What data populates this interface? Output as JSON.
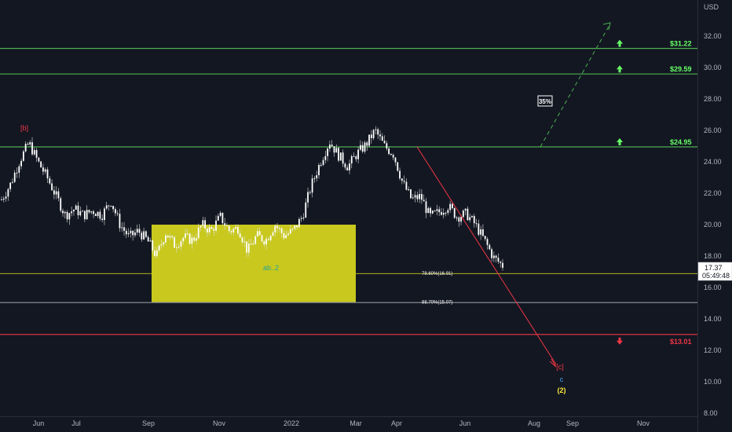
{
  "chart_data": {
    "type": "candlestick",
    "currency": "USD",
    "y_ticks": [
      "32.00",
      "30.00",
      "28.00",
      "26.00",
      "24.00",
      "22.00",
      "20.00",
      "18.00",
      "16.00",
      "14.00",
      "12.00",
      "10.00",
      "8.00"
    ],
    "ylim": [
      8,
      33.2
    ],
    "x_ticks": [
      "Jun",
      "Jul",
      "Sep",
      "Nov",
      "2022",
      "Mar",
      "Apr",
      "Jun",
      "Aug",
      "Sep",
      "Nov"
    ],
    "last_price": "17.37",
    "countdown": "05:49:48",
    "resistance_levels": [
      {
        "price": 31.22,
        "label": "$31.22",
        "color": "#4caf50"
      },
      {
        "price": 29.59,
        "label": "$29.59",
        "color": "#4caf50"
      },
      {
        "price": 24.95,
        "label": "$24.95",
        "color": "#4caf50"
      }
    ],
    "support_levels": [
      {
        "price": 13.01,
        "label": "$13.01",
        "color": "#f23645"
      }
    ],
    "fib_levels": [
      {
        "price": 16.91,
        "label": "78.60%(16.91)"
      },
      {
        "price": 15.07,
        "label": "88.70%(15.07)"
      }
    ],
    "zone": {
      "top": 20.0,
      "bottom": 15.07,
      "color": "#c8c81e"
    },
    "projection_label": "35%",
    "wave_labels": [
      {
        "text": "[b]",
        "price": 26.0,
        "color": "#f23645"
      },
      {
        "text": "ab..2",
        "price": 17.1,
        "color": "#26a69a"
      },
      {
        "text": "[c]",
        "price": 10.8,
        "color": "#f23645"
      },
      {
        "text": "c",
        "price": 10.0,
        "color": "#42a5f5"
      },
      {
        "text": "(2)",
        "price": 9.3,
        "color": "#ffeb3b"
      }
    ],
    "price_series": [
      21.6,
      22.6,
      24.1,
      25.2,
      24.0,
      23.0,
      21.8,
      20.6,
      21.0,
      20.6,
      20.9,
      20.6,
      21.5,
      20.0,
      19.2,
      19.6,
      19.0,
      18.0,
      19.5,
      18.7,
      19.2,
      19.0,
      20.0,
      19.6,
      20.5,
      19.6,
      19.8,
      18.3,
      19.3,
      19.0,
      20.0,
      19.3,
      19.6,
      20.5,
      22.5,
      24.0,
      25.3,
      24.4,
      23.7,
      24.5,
      25.1,
      26.0,
      25.0,
      24.5,
      22.7,
      21.6,
      21.8,
      20.5,
      20.8,
      21.2,
      20.5,
      20.7,
      20.0,
      19.0,
      17.9,
      17.4
    ]
  }
}
